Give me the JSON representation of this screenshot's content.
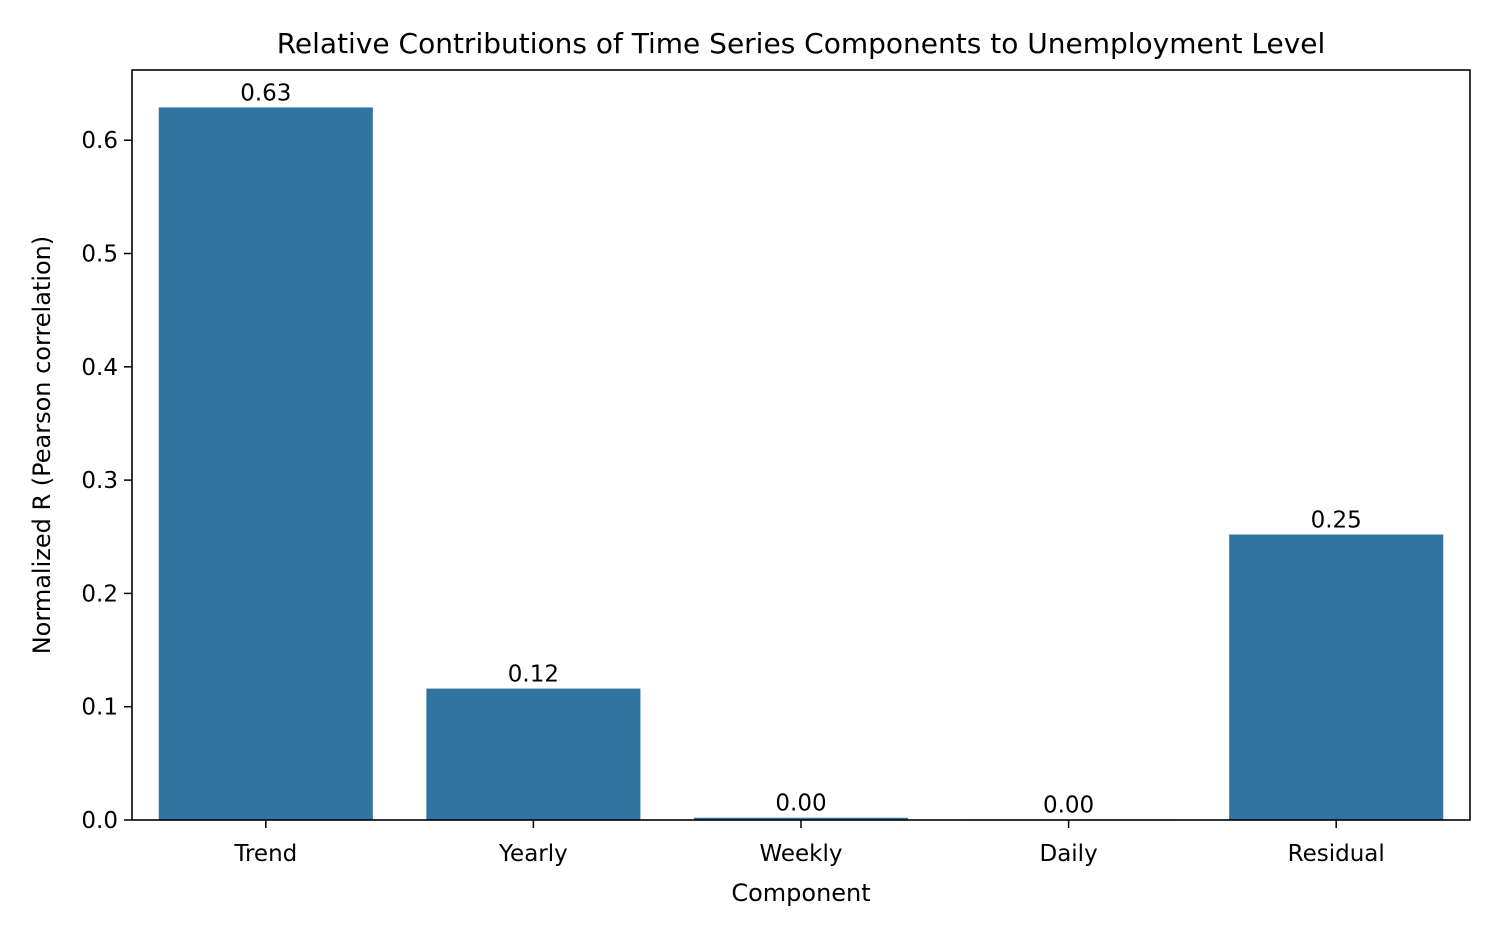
{
  "chart_data": {
    "type": "bar",
    "title": "Relative Contributions of Time Series Components to Unemployment Level",
    "xlabel": "Component",
    "ylabel": "Normalized R (Pearson correlation)",
    "categories": [
      "Trend",
      "Yearly",
      "Weekly",
      "Daily",
      "Residual"
    ],
    "values": [
      0.629,
      0.116,
      0.002,
      0.0005,
      0.252
    ],
    "data_labels": [
      "0.63",
      "0.12",
      "0.00",
      "0.00",
      "0.25"
    ],
    "ylim": [
      0,
      0.662
    ],
    "yticks": [
      0.0,
      0.1,
      0.2,
      0.3,
      0.4,
      0.5,
      0.6
    ],
    "ytick_labels": [
      "0.0",
      "0.1",
      "0.2",
      "0.3",
      "0.4",
      "0.5",
      "0.6"
    ],
    "grid": false,
    "legend": null,
    "colors": {
      "bar": "#3274a1",
      "axis": "#000000",
      "text": "#000000"
    }
  }
}
